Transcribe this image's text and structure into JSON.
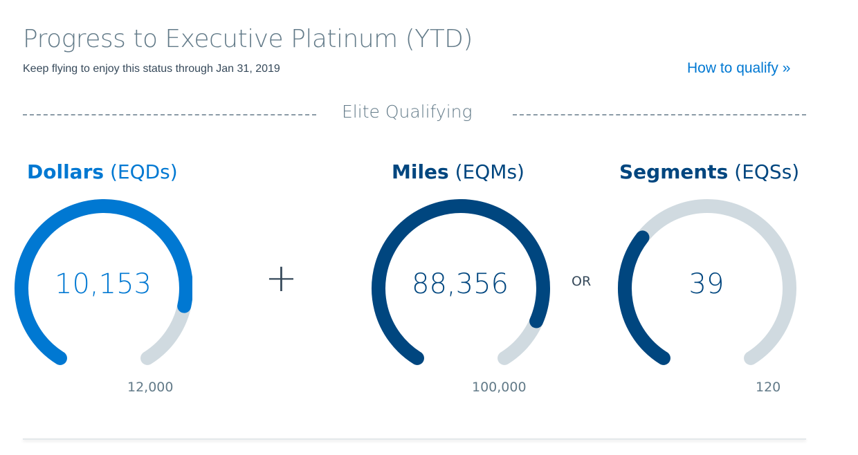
{
  "header": {
    "title": "Progress to Executive Platinum (YTD)",
    "subtitle": "Keep flying to enjoy this status through Jan 31, 2019",
    "qualify_link": "How to qualify »"
  },
  "section_label": "Elite Qualifying",
  "colors": {
    "dollars": "#0078d2",
    "miles": "#00467f",
    "segments": "#00467f",
    "track": "#d0dae0"
  },
  "gauges": [
    {
      "label": "Dollars",
      "abbr": "(EQDs)",
      "value": "10,153",
      "current": 10153,
      "max_label": "12,000",
      "max": 12000
    },
    {
      "label": "Miles",
      "abbr": "(EQMs)",
      "value": "88,356",
      "current": 88356,
      "max_label": "100,000",
      "max": 100000
    },
    {
      "label": "Segments",
      "abbr": "(EQSs)",
      "value": "39",
      "current": 39,
      "max_label": "120",
      "max": 120
    }
  ],
  "operators": {
    "plus": "+",
    "or": "OR"
  }
}
